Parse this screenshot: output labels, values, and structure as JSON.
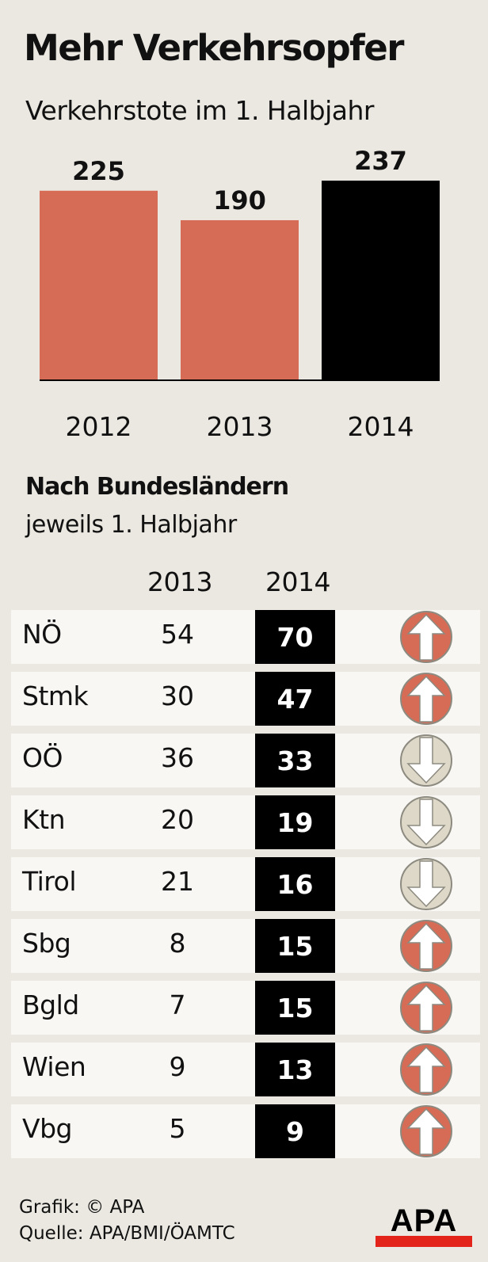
{
  "title": "Mehr Verkehrsopfer",
  "subtitle": "Verkehrstote im 1. Halbjahr",
  "chart_data": {
    "type": "bar",
    "title": "Verkehrstote im 1. Halbjahr",
    "categories": [
      "2012",
      "2013",
      "2014"
    ],
    "values": [
      225,
      190,
      237
    ],
    "colors": [
      "#d66b56",
      "#d66b56",
      "#000000"
    ],
    "ylim": [
      0,
      237
    ],
    "xlabel": "",
    "ylabel": ""
  },
  "section": {
    "title": "Nach Bundesländern",
    "subtitle": "jeweils 1. Halbjahr",
    "col_2013": "2013",
    "col_2014": "2014"
  },
  "table": [
    {
      "state": "NÖ",
      "v2013": "54",
      "v2014": "70",
      "trend": "up"
    },
    {
      "state": "Stmk",
      "v2013": "30",
      "v2014": "47",
      "trend": "up"
    },
    {
      "state": "OÖ",
      "v2013": "36",
      "v2014": "33",
      "trend": "down"
    },
    {
      "state": "Ktn",
      "v2013": "20",
      "v2014": "19",
      "trend": "down"
    },
    {
      "state": "Tirol",
      "v2013": "21",
      "v2014": "16",
      "trend": "down"
    },
    {
      "state": "Sbg",
      "v2013": "8",
      "v2014": "15",
      "trend": "up"
    },
    {
      "state": "Bgld",
      "v2013": "7",
      "v2014": "15",
      "trend": "up"
    },
    {
      "state": "Wien",
      "v2013": "9",
      "v2014": "13",
      "trend": "up"
    },
    {
      "state": "Vbg",
      "v2013": "5",
      "v2014": "9",
      "trend": "up"
    }
  ],
  "footer": {
    "credit": "Grafik: © APA",
    "source": "Quelle: APA/BMI/ÖAMTC",
    "logo_text": "APA"
  },
  "colors": {
    "background": "#ebe8e1",
    "row_bg": "#f8f7f3",
    "up": "#d66b56",
    "down": "#ddd8c8",
    "highlight": "#000000"
  }
}
